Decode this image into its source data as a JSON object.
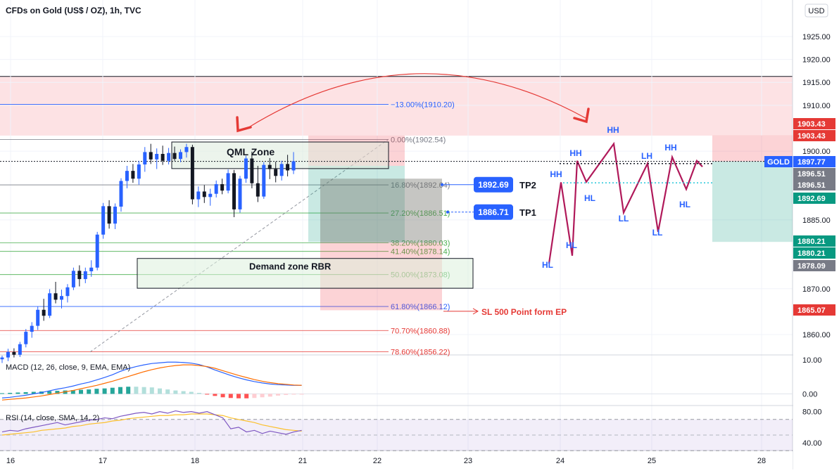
{
  "header": {
    "title": "CFDs on Gold (US$ / OZ), 1h, TVC",
    "currency": "USD"
  },
  "chart_data": {
    "type": "candlestick",
    "title": "CFDs on Gold (US$ / OZ), 1h, TVC",
    "x_ticks": [
      "16",
      "17",
      "18",
      "21",
      "22",
      "23",
      "24",
      "25",
      "28"
    ],
    "y_ticks": [
      "1925.00",
      "1920.00",
      "1915.00",
      "1910.00",
      "1900.00",
      "1885.00",
      "1870.00",
      "1860.00"
    ],
    "ylim": [
      1853,
      1927
    ],
    "price_labels": [
      {
        "text": "1903.43",
        "value": 1903.43,
        "color": "#e53935"
      },
      {
        "text": "1903.43",
        "value": 1903.43,
        "color": "#e53935"
      },
      {
        "text": "GOLD",
        "value": 1897.77,
        "color": "#2962ff"
      },
      {
        "text": "1897.77",
        "value": 1897.77,
        "color": "#2962ff"
      },
      {
        "text": "1896.51",
        "value": 1896.51,
        "color": "#787b86"
      },
      {
        "text": "1896.51",
        "value": 1896.51,
        "color": "#787b86"
      },
      {
        "text": "1892.69",
        "value": 1892.69,
        "color": "#089981"
      },
      {
        "text": "1880.21",
        "value": 1880.21,
        "color": "#089981"
      },
      {
        "text": "1880.21",
        "value": 1880.21,
        "color": "#089981"
      },
      {
        "text": "1878.09",
        "value": 1878.09,
        "color": "#787b86"
      },
      {
        "text": "1865.07",
        "value": 1865.07,
        "color": "#e53935"
      }
    ],
    "fib_levels": [
      {
        "label": "−13.00%(1910.20)",
        "value": 1910.2,
        "color": "#2962ff"
      },
      {
        "label": "0.00%(1902.54)",
        "value": 1902.54,
        "color": "#787b86"
      },
      {
        "label": "16.80%(1892.64)",
        "value": 1892.64,
        "color": "#787b86"
      },
      {
        "label": "27.20%(1886.51)",
        "value": 1886.51,
        "color": "#4caf50"
      },
      {
        "label": "38.20%(1880.03)",
        "value": 1880.03,
        "color": "#4caf50"
      },
      {
        "label": "41.40%(1878.14)",
        "value": 1878.14,
        "color": "#4caf50"
      },
      {
        "label": "50.00%(1873.08)",
        "value": 1873.08,
        "color": "#4caf50"
      },
      {
        "label": "61.80%(1866.12)",
        "value": 1866.12,
        "color": "#2962ff"
      },
      {
        "label": "70.70%(1860.88)",
        "value": 1860.88,
        "color": "#e53935"
      },
      {
        "label": "78.60%(1856.22)",
        "value": 1856.22,
        "color": "#e53935"
      }
    ],
    "candles": [
      {
        "o": 1854.6,
        "h": 1855.4,
        "l": 1853.8,
        "c": 1855.0
      },
      {
        "o": 1855.0,
        "h": 1856.9,
        "l": 1854.2,
        "c": 1856.2
      },
      {
        "o": 1856.2,
        "h": 1857.0,
        "l": 1855.0,
        "c": 1855.6
      },
      {
        "o": 1855.6,
        "h": 1858.4,
        "l": 1855.1,
        "c": 1857.9
      },
      {
        "o": 1857.9,
        "h": 1861.2,
        "l": 1857.2,
        "c": 1860.6
      },
      {
        "o": 1860.6,
        "h": 1862.7,
        "l": 1859.3,
        "c": 1861.9
      },
      {
        "o": 1861.9,
        "h": 1866.1,
        "l": 1861.0,
        "c": 1865.4
      },
      {
        "o": 1865.4,
        "h": 1867.8,
        "l": 1863.0,
        "c": 1864.1
      },
      {
        "o": 1864.1,
        "h": 1869.9,
        "l": 1863.6,
        "c": 1869.0
      },
      {
        "o": 1869.0,
        "h": 1871.5,
        "l": 1866.8,
        "c": 1867.6
      },
      {
        "o": 1867.6,
        "h": 1869.8,
        "l": 1865.7,
        "c": 1868.4
      },
      {
        "o": 1868.4,
        "h": 1871.0,
        "l": 1867.0,
        "c": 1870.3
      },
      {
        "o": 1870.3,
        "h": 1874.6,
        "l": 1869.7,
        "c": 1873.9
      },
      {
        "o": 1873.9,
        "h": 1875.1,
        "l": 1870.5,
        "c": 1872.1
      },
      {
        "o": 1872.1,
        "h": 1874.6,
        "l": 1871.2,
        "c": 1873.8
      },
      {
        "o": 1873.8,
        "h": 1876.2,
        "l": 1872.6,
        "c": 1874.6
      },
      {
        "o": 1874.6,
        "h": 1882.4,
        "l": 1874.0,
        "c": 1881.8
      },
      {
        "o": 1881.8,
        "h": 1888.7,
        "l": 1880.9,
        "c": 1888.0
      },
      {
        "o": 1888.0,
        "h": 1889.3,
        "l": 1883.1,
        "c": 1884.2
      },
      {
        "o": 1884.2,
        "h": 1888.6,
        "l": 1883.0,
        "c": 1887.9
      },
      {
        "o": 1887.9,
        "h": 1894.1,
        "l": 1886.8,
        "c": 1893.5
      },
      {
        "o": 1893.5,
        "h": 1896.8,
        "l": 1891.9,
        "c": 1895.7
      },
      {
        "o": 1895.7,
        "h": 1897.2,
        "l": 1893.1,
        "c": 1894.0
      },
      {
        "o": 1894.0,
        "h": 1897.9,
        "l": 1892.7,
        "c": 1897.1
      },
      {
        "o": 1897.1,
        "h": 1900.9,
        "l": 1895.5,
        "c": 1899.8
      },
      {
        "o": 1899.8,
        "h": 1901.6,
        "l": 1897.2,
        "c": 1898.2
      },
      {
        "o": 1898.2,
        "h": 1900.6,
        "l": 1896.1,
        "c": 1899.4
      },
      {
        "o": 1899.4,
        "h": 1901.2,
        "l": 1897.0,
        "c": 1897.9
      },
      {
        "o": 1897.9,
        "h": 1900.7,
        "l": 1897.1,
        "c": 1899.6
      },
      {
        "o": 1899.6,
        "h": 1901.0,
        "l": 1897.9,
        "c": 1898.3
      },
      {
        "o": 1898.3,
        "h": 1900.4,
        "l": 1897.6,
        "c": 1899.8
      },
      {
        "o": 1899.8,
        "h": 1901.6,
        "l": 1898.6,
        "c": 1900.9
      },
      {
        "o": 1900.9,
        "h": 1901.4,
        "l": 1888.4,
        "c": 1889.5
      },
      {
        "o": 1889.5,
        "h": 1892.3,
        "l": 1887.8,
        "c": 1891.2
      },
      {
        "o": 1891.2,
        "h": 1892.6,
        "l": 1888.7,
        "c": 1890.0
      },
      {
        "o": 1890.0,
        "h": 1891.8,
        "l": 1888.1,
        "c": 1890.7
      },
      {
        "o": 1890.7,
        "h": 1893.6,
        "l": 1889.9,
        "c": 1892.8
      },
      {
        "o": 1892.8,
        "h": 1894.0,
        "l": 1890.6,
        "c": 1891.4
      },
      {
        "o": 1891.4,
        "h": 1896.0,
        "l": 1890.8,
        "c": 1895.2
      },
      {
        "o": 1895.2,
        "h": 1895.9,
        "l": 1885.6,
        "c": 1887.3
      },
      {
        "o": 1887.3,
        "h": 1894.6,
        "l": 1886.6,
        "c": 1894.0
      },
      {
        "o": 1894.0,
        "h": 1899.0,
        "l": 1893.1,
        "c": 1898.4
      },
      {
        "o": 1898.4,
        "h": 1899.9,
        "l": 1891.9,
        "c": 1893.0
      },
      {
        "o": 1893.0,
        "h": 1896.8,
        "l": 1888.9,
        "c": 1890.1
      },
      {
        "o": 1890.1,
        "h": 1897.6,
        "l": 1889.6,
        "c": 1897.0
      },
      {
        "o": 1897.0,
        "h": 1898.5,
        "l": 1893.9,
        "c": 1896.1
      },
      {
        "o": 1896.1,
        "h": 1897.7,
        "l": 1893.2,
        "c": 1894.6
      },
      {
        "o": 1894.6,
        "h": 1897.9,
        "l": 1893.6,
        "c": 1897.2
      },
      {
        "o": 1897.2,
        "h": 1899.2,
        "l": 1894.5,
        "c": 1895.8
      },
      {
        "o": 1895.8,
        "h": 1899.8,
        "l": 1895.0,
        "c": 1897.8
      }
    ],
    "last_price": 1897.77,
    "qml_zone": {
      "label": "QML Zone",
      "top": 1902.0,
      "bottom": 1896.2
    },
    "demand_zone": {
      "label": "Demand zone RBR",
      "top": 1876.6,
      "bottom": 1870.1
    },
    "positions": [
      {
        "name": "position-1",
        "entry": 1896.8,
        "tp": 1880.2,
        "sl": 1903.4
      },
      {
        "name": "position-2",
        "entry": 1894.0,
        "tp": 1880.0,
        "sl": 1865.3
      },
      {
        "name": "position-3",
        "entry": 1897.77,
        "tp": 1880.21,
        "sl": 1903.43
      }
    ],
    "tp_markers": [
      {
        "value": "1892.69",
        "label": "TP2",
        "price": 1892.69
      },
      {
        "value": "1886.71",
        "label": "TP1",
        "price": 1886.71
      }
    ],
    "sl_note": "SL 500 Point form EP",
    "swing_path": [
      1875.5,
      1893.2,
      1877.2,
      1897.9,
      1893.3,
      1901.6,
      1886.6,
      1897.3,
      1882.4,
      1898.7,
      1891.7,
      1897.9,
      1896.6
    ],
    "swing_labels": [
      "HL",
      "HH",
      "HL",
      "HH",
      "HL",
      "HH",
      "LL",
      "LH",
      "LL",
      "HH",
      "HL"
    ],
    "macd": {
      "label": "MACD (12, 26, close, 9, EMA, EMA)",
      "y_ticks": [
        "10.00",
        "0.00"
      ],
      "ylim": [
        -3,
        11
      ],
      "macd_line": [
        -1.2,
        -1.0,
        -0.7,
        -0.4,
        0.0,
        0.4,
        0.9,
        1.4,
        1.8,
        2.3,
        2.9,
        3.4,
        4.1,
        4.8,
        5.6,
        6.6,
        7.4,
        8.0,
        8.5,
        8.9,
        9.1,
        9.3,
        9.3,
        9.2,
        9.0,
        8.6,
        7.9,
        7.0,
        6.2,
        5.4,
        4.7,
        4.1,
        3.6,
        3.2,
        2.9,
        2.7,
        2.6,
        2.5,
        2.5
      ],
      "signal_line": [
        -1.8,
        -1.6,
        -1.4,
        -1.2,
        -0.9,
        -0.6,
        -0.2,
        0.2,
        0.6,
        1.0,
        1.5,
        2.0,
        2.5,
        3.1,
        3.7,
        4.4,
        5.1,
        5.8,
        6.5,
        7.1,
        7.6,
        8.0,
        8.3,
        8.5,
        8.5,
        8.3,
        8.0,
        7.5,
        6.8,
        6.1,
        5.4,
        4.8,
        4.2,
        3.7,
        3.3,
        3.0,
        2.8,
        2.6,
        2.5
      ],
      "histogram": [
        0.2,
        0.3,
        0.4,
        0.5,
        0.6,
        0.7,
        0.8,
        0.9,
        1.0,
        1.1,
        1.2,
        1.3,
        1.5,
        1.6,
        1.8,
        2.0,
        2.1,
        2.1,
        2.0,
        1.9,
        1.6,
        1.3,
        1.0,
        0.8,
        0.6,
        0.3,
        -0.2,
        -0.6,
        -1.0,
        -1.2,
        -1.3,
        -1.3,
        -1.2,
        -1.0,
        -0.8,
        -0.5,
        -0.3,
        -0.2,
        -0.1
      ]
    },
    "rsi": {
      "label": "RSI (14, close, SMA, 14, 2)",
      "y_ticks": [
        "80.00",
        "40.00"
      ],
      "ylim": [
        32,
        86
      ],
      "band": [
        70,
        30
      ],
      "rsi_line": [
        54,
        56,
        55,
        58,
        60,
        62,
        64,
        66,
        63,
        65,
        67,
        69,
        70,
        72,
        71,
        74,
        76,
        78,
        79,
        77,
        80,
        78,
        81,
        79,
        80,
        78,
        80,
        76,
        72,
        58,
        60,
        54,
        56,
        52,
        55,
        53,
        51,
        54,
        56
      ],
      "sma_line": [
        50,
        51,
        52,
        53,
        54,
        56,
        57,
        58,
        59,
        61,
        62,
        64,
        65,
        66,
        68,
        69,
        71,
        72,
        73,
        74,
        75,
        75,
        76,
        76,
        77,
        77,
        77,
        76,
        75,
        72,
        70,
        68,
        66,
        63,
        61,
        59,
        57,
        56,
        55
      ]
    }
  }
}
